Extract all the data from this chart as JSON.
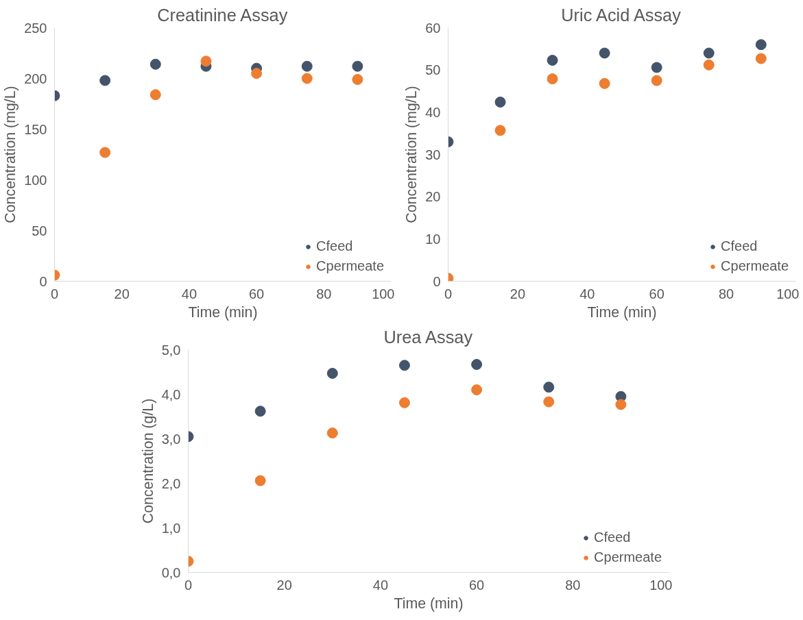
{
  "chart_data": [
    {
      "type": "scatter",
      "title": "Creatinine Assay",
      "xlabel": "Time (min)",
      "ylabel": "Concentration (mg/L)",
      "x": [
        0,
        15,
        30,
        45,
        60,
        75,
        90
      ],
      "xlim": [
        0,
        100
      ],
      "xticks": [
        0,
        20,
        40,
        60,
        80,
        100
      ],
      "ylim": [
        0,
        250
      ],
      "yticks": [
        0,
        50,
        100,
        150,
        200,
        250
      ],
      "grid": false,
      "legend": "bottom right",
      "marker": "circle",
      "series": [
        {
          "name": "Cfeed",
          "color": "#44546a",
          "values": [
            183,
            198,
            214,
            212,
            210,
            212,
            212
          ]
        },
        {
          "name": "Cpermeate",
          "color": "#ed7d31",
          "values": [
            6,
            127,
            184,
            217,
            205,
            200,
            199
          ]
        }
      ]
    },
    {
      "type": "scatter",
      "title": "Uric Acid Assay",
      "xlabel": "Time (min)",
      "ylabel": "Concentration (mg/L)",
      "x": [
        0,
        15,
        30,
        45,
        60,
        75,
        90
      ],
      "xlim": [
        0,
        100
      ],
      "xticks": [
        0,
        20,
        40,
        60,
        80,
        100
      ],
      "ylim": [
        0,
        60
      ],
      "yticks": [
        0,
        10,
        20,
        30,
        40,
        50,
        60
      ],
      "grid": false,
      "legend": "bottom right",
      "marker": "circle",
      "series": [
        {
          "name": "Cfeed",
          "color": "#44546a",
          "values": [
            33,
            42.4,
            52.3,
            54,
            50.6,
            54,
            56
          ]
        },
        {
          "name": "Cpermeate",
          "color": "#ed7d31",
          "values": [
            0.7,
            35.7,
            47.9,
            46.8,
            47.5,
            51.2,
            52.7
          ]
        }
      ]
    },
    {
      "type": "scatter",
      "title": "Urea Assay",
      "xlabel": "Time (min)",
      "ylabel": "Concentration (g/L)",
      "x": [
        0,
        15,
        30,
        45,
        60,
        75,
        90
      ],
      "xlim": [
        0,
        100
      ],
      "xticks": [
        0,
        20,
        40,
        60,
        80,
        100
      ],
      "ylim": [
        0,
        5
      ],
      "yticks": [
        {
          "value": 0,
          "label": "0,0"
        },
        {
          "value": 1,
          "label": "1,0"
        },
        {
          "value": 2,
          "label": "2,0"
        },
        {
          "value": 3,
          "label": "3,0"
        },
        {
          "value": 4,
          "label": "4,0"
        },
        {
          "value": 5,
          "label": "5,0"
        }
      ],
      "grid": false,
      "legend": "bottom right",
      "marker": "circle",
      "series": [
        {
          "name": "Cfeed",
          "color": "#44546a",
          "values": [
            3.05,
            3.62,
            4.47,
            4.65,
            4.67,
            4.16,
            3.95
          ]
        },
        {
          "name": "Cpermeate",
          "color": "#ed7d31",
          "values": [
            0.25,
            2.06,
            3.13,
            3.81,
            4.1,
            3.83,
            3.77
          ]
        }
      ]
    }
  ]
}
